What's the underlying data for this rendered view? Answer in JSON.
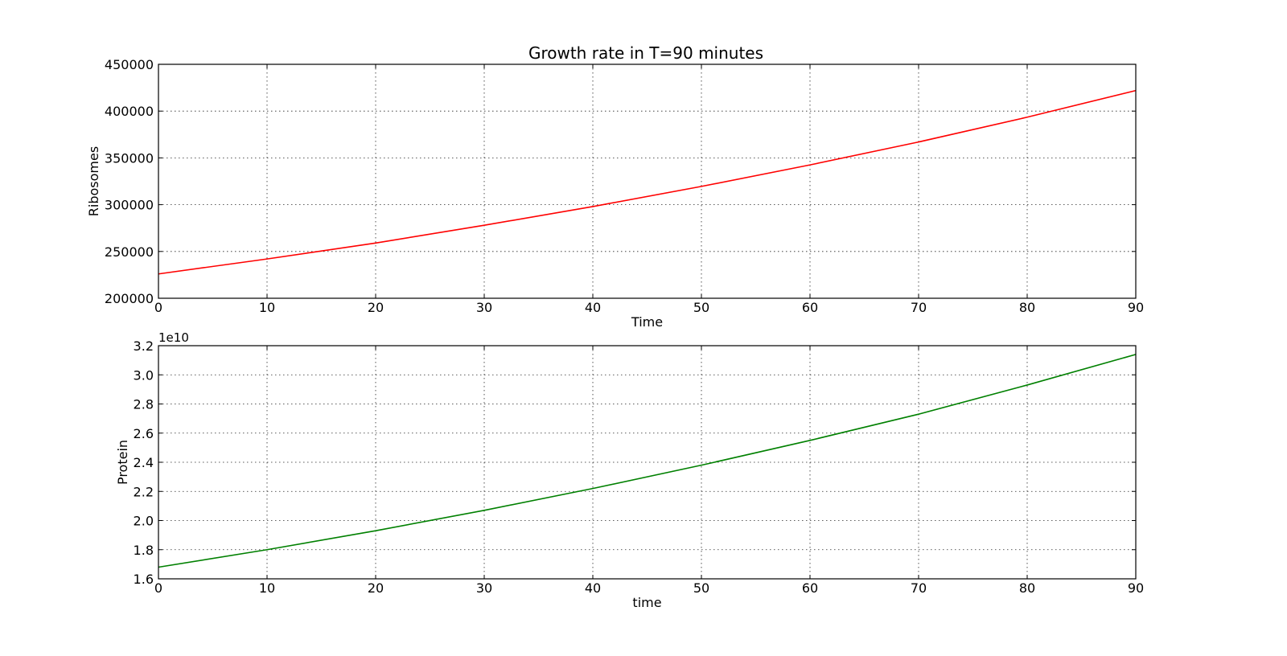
{
  "figure": {
    "title": "Growth rate in T=90 minutes"
  },
  "chart_data": [
    {
      "type": "line",
      "title": "Growth rate in T=90 minutes",
      "xlabel": "Time",
      "ylabel": "Ribosomes",
      "xlim": [
        0,
        90
      ],
      "ylim": [
        200000,
        450000
      ],
      "x_ticks": [
        0,
        10,
        20,
        30,
        40,
        50,
        60,
        70,
        80,
        90
      ],
      "y_ticks": [
        200000,
        250000,
        300000,
        350000,
        400000,
        450000
      ],
      "y_tick_labels": [
        "200000",
        "250000",
        "300000",
        "350000",
        "400000",
        "450000"
      ],
      "offset_text": "",
      "grid": true,
      "series": [
        {
          "color": "#ff0000",
          "x": [
            0,
            10,
            20,
            30,
            40,
            50,
            60,
            70,
            80,
            90
          ],
          "y": [
            226000,
            242000,
            259000,
            278000,
            298000,
            319500,
            342500,
            367000,
            393500,
            422000
          ]
        }
      ]
    },
    {
      "type": "line",
      "title": "",
      "xlabel": "time",
      "ylabel": "Protein",
      "xlim": [
        0,
        90
      ],
      "ylim": [
        1.6,
        3.2
      ],
      "x_ticks": [
        0,
        10,
        20,
        30,
        40,
        50,
        60,
        70,
        80,
        90
      ],
      "y_ticks": [
        1.6,
        1.8,
        2.0,
        2.2,
        2.4,
        2.6,
        2.8,
        3.0,
        3.2
      ],
      "y_tick_labels": [
        "1.6",
        "1.8",
        "2.0",
        "2.2",
        "2.4",
        "2.6",
        "2.8",
        "3.0",
        "3.2"
      ],
      "offset_text": "1e10",
      "grid": true,
      "series": [
        {
          "color": "#008000",
          "x": [
            0,
            10,
            20,
            30,
            40,
            50,
            60,
            70,
            80,
            90
          ],
          "y": [
            1.68,
            1.8,
            1.93,
            2.07,
            2.22,
            2.38,
            2.55,
            2.73,
            2.93,
            3.14
          ]
        }
      ]
    }
  ]
}
